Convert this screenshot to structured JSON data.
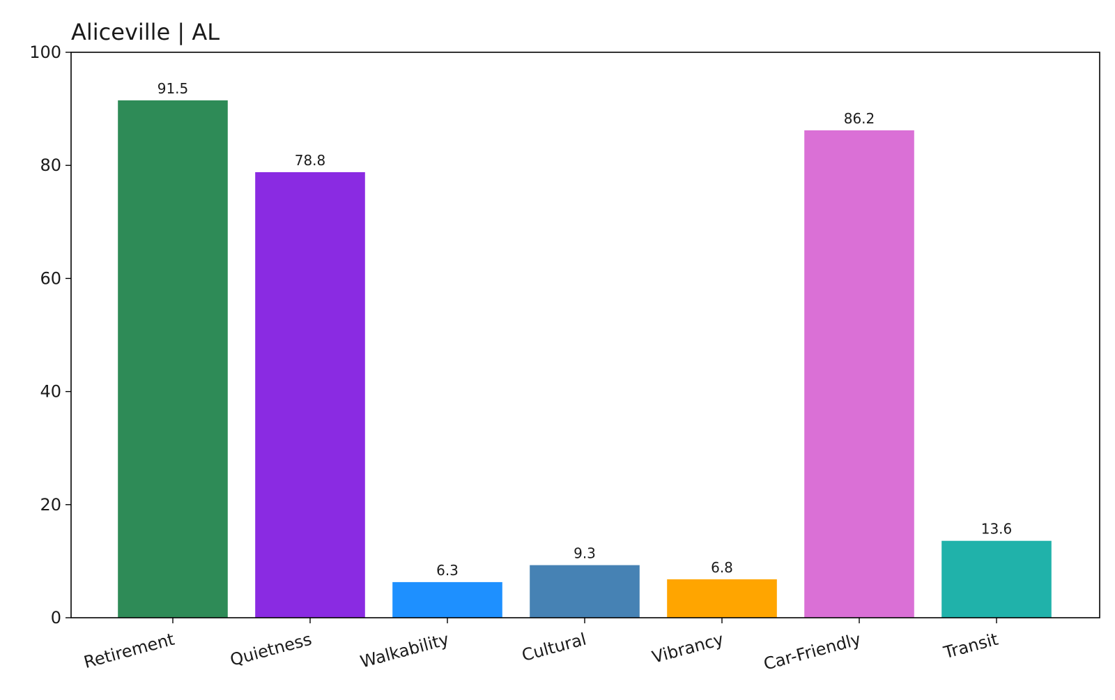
{
  "chart_data": {
    "type": "bar",
    "title": "Aliceville | AL",
    "xlabel": "",
    "ylabel": "",
    "ylim": [
      0,
      100
    ],
    "yticks": [
      0,
      20,
      40,
      60,
      80,
      100
    ],
    "grid": false,
    "categories": [
      "Retirement",
      "Quietness",
      "Walkability",
      "Cultural",
      "Vibrancy",
      "Car-Friendly",
      "Transit"
    ],
    "values": [
      91.5,
      78.8,
      6.3,
      9.3,
      6.8,
      86.2,
      13.6
    ],
    "data_labels": [
      "91.5",
      "78.8",
      "6.3",
      "9.3",
      "6.8",
      "86.2",
      "13.6"
    ],
    "colors": [
      "#2e8b57",
      "#8a2be2",
      "#1e90ff",
      "#4682b4",
      "#ffa500",
      "#da70d6",
      "#20b2aa"
    ],
    "xtick_rotation_deg": -15
  }
}
